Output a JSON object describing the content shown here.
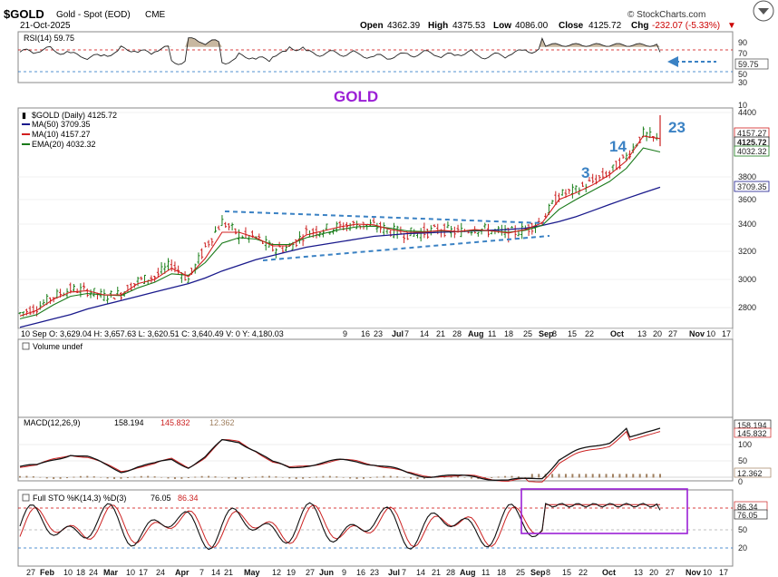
{
  "header": {
    "symbol": "$GOLD",
    "name": "Gold - Spot (EOD)",
    "exchange": "CME",
    "date": "21-Oct-2025",
    "open_label": "Open",
    "open": "4362.39",
    "high_label": "High",
    "high": "4375.53",
    "low_label": "Low",
    "low": "4086.00",
    "close_label": "Close",
    "close": "4125.72",
    "chg_label": "Chg",
    "chg": "-232.07 (-5.33%)",
    "brand": "© StockCharts.com",
    "down_arrow": "▼"
  },
  "colors": {
    "price_bars": "#1a7f1a",
    "ma50": "#1a1a8c",
    "ma10": "#d21f1f",
    "ema20": "#1a7a1a",
    "trendline": "#3b82c4",
    "annotation": "#3b82c4",
    "gold_title": "#9b1fd6",
    "highlight_box": "#9b1fd6",
    "rsi_fill": "#c8b8a0",
    "macd_hist": "#a08060"
  },
  "rsi_panel": {
    "label": "RSI(14) 59.75",
    "levels": [
      "90",
      "70",
      "50",
      "30",
      "10"
    ],
    "value_tag": "59.75"
  },
  "price_panel": {
    "title": "GOLD",
    "legend": {
      "main": "$GOLD (Daily) 4125.72",
      "ma50": "MA(50) 3709.35",
      "ma10": "MA(10) 4157.27",
      "ema20": "EMA(20) 4032.32"
    },
    "y_ticks": [
      "4400",
      "4200",
      "3800",
      "3600",
      "3400",
      "3200",
      "3000",
      "2800"
    ],
    "tags": [
      "4157.27",
      "4125.72",
      "4032.32",
      "3709.35"
    ],
    "annotations": [
      "3",
      "14",
      "23"
    ],
    "ohlc_readout": "10 Sep O: 3,629.04   H: 3,657.63   L: 3,620.51   C: 3,640.49   V: 0   Y: 4,180.03"
  },
  "x_axis": {
    "labels": [
      "9",
      "16",
      "23",
      "Jul",
      "7",
      "14",
      "21",
      "28",
      "Aug",
      "11",
      "18",
      "25",
      "Sep",
      "8",
      "15",
      "22",
      "Oct",
      "13",
      "20",
      "27",
      "Nov",
      "10",
      "17"
    ],
    "bottom_labels": [
      "27",
      "Feb",
      "10",
      "18",
      "24",
      "Mar",
      "10",
      "17",
      "24",
      "Apr",
      "7",
      "14",
      "21",
      "May",
      "12",
      "19",
      "27",
      "Jun",
      "9",
      "16",
      "23",
      "Jul",
      "7",
      "14",
      "21",
      "28",
      "Aug",
      "11",
      "18",
      "25",
      "Sep",
      "8",
      "15",
      "22",
      "Oct",
      "13",
      "20",
      "27",
      "Nov",
      "10",
      "17"
    ]
  },
  "volume_panel": {
    "label": "Volume undef"
  },
  "macd_panel": {
    "label_prefix": "MACD(12,26,9)",
    "v1": "158.194",
    "v2": "145.832",
    "v3": "12.362",
    "y_ticks": [
      "100",
      "50",
      "0"
    ],
    "tags": [
      "158.194",
      "145.832",
      "12.362"
    ]
  },
  "sto_panel": {
    "label_prefix": "Full STO %K(14,3) %D(3)",
    "k": "76.05",
    "d": "86.34",
    "y_ticks": [
      "50",
      "20"
    ],
    "tags": [
      "86.34",
      "76.05"
    ]
  },
  "chart_data": {
    "type": "line",
    "title": "$GOLD (Daily) 4125.72",
    "x": [
      "Jan-27",
      "Feb-3",
      "Feb-10",
      "Feb-18",
      "Feb-24",
      "Mar-3",
      "Mar-10",
      "Mar-17",
      "Mar-24",
      "Mar-31",
      "Apr-7",
      "Apr-14",
      "Apr-21",
      "Apr-28",
      "May-5",
      "May-12",
      "May-19",
      "May-27",
      "Jun-2",
      "Jun-9",
      "Jun-16",
      "Jun-23",
      "Jun-30",
      "Jul-7",
      "Jul-14",
      "Jul-21",
      "Jul-28",
      "Aug-4",
      "Aug-11",
      "Aug-18",
      "Aug-25",
      "Sep-1",
      "Sep-8",
      "Sep-15",
      "Sep-22",
      "Sep-29",
      "Oct-6",
      "Oct-13",
      "Oct-20"
    ],
    "ylim": [
      2700,
      4450
    ],
    "series": [
      {
        "name": "$GOLD (Daily) 4125.72",
        "values": [
          2760,
          2800,
          2880,
          2930,
          2920,
          2880,
          2900,
          2990,
          3020,
          3110,
          3000,
          3230,
          3420,
          3320,
          3300,
          3220,
          3230,
          3340,
          3360,
          3380,
          3400,
          3390,
          3350,
          3330,
          3340,
          3360,
          3340,
          3370,
          3350,
          3330,
          3360,
          3430,
          3640,
          3680,
          3760,
          3840,
          3990,
          4200,
          4125
        ]
      },
      {
        "name": "MA(50) 3709.35",
        "values": [
          2660,
          2690,
          2720,
          2750,
          2790,
          2820,
          2850,
          2880,
          2910,
          2940,
          2970,
          3010,
          3060,
          3100,
          3140,
          3170,
          3200,
          3230,
          3250,
          3270,
          3290,
          3310,
          3320,
          3330,
          3335,
          3340,
          3345,
          3350,
          3355,
          3360,
          3370,
          3390,
          3420,
          3460,
          3510,
          3560,
          3610,
          3660,
          3709
        ]
      },
      {
        "name": "MA(10) 4157.27",
        "values": [
          2740,
          2780,
          2860,
          2910,
          2920,
          2890,
          2890,
          2970,
          3000,
          3080,
          3020,
          3150,
          3340,
          3340,
          3300,
          3240,
          3240,
          3320,
          3350,
          3380,
          3400,
          3395,
          3360,
          3340,
          3340,
          3355,
          3345,
          3360,
          3350,
          3335,
          3360,
          3410,
          3600,
          3660,
          3730,
          3820,
          3950,
          4180,
          4157
        ]
      },
      {
        "name": "EMA(20) 4032.32",
        "values": [
          2720,
          2750,
          2820,
          2880,
          2900,
          2890,
          2885,
          2940,
          2980,
          3040,
          3030,
          3120,
          3260,
          3300,
          3290,
          3250,
          3250,
          3300,
          3330,
          3360,
          3380,
          3385,
          3370,
          3350,
          3345,
          3350,
          3345,
          3355,
          3350,
          3340,
          3355,
          3390,
          3520,
          3600,
          3680,
          3760,
          3880,
          4070,
          4032
        ]
      }
    ],
    "legend": "top-left",
    "grid": true
  }
}
